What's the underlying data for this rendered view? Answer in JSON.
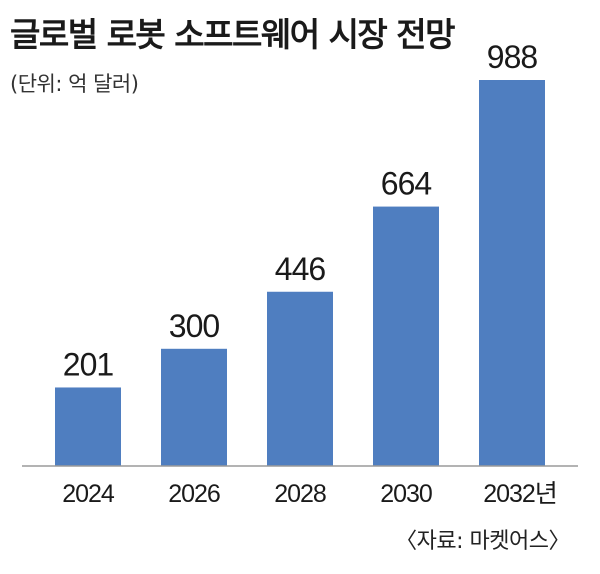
{
  "chart_data": {
    "type": "bar",
    "title": "글로벌 로봇 소프트웨어 시장 전망",
    "unit_note": "(단위: 억 달러)",
    "categories": [
      "2024",
      "2026",
      "2028",
      "2030",
      "2032년"
    ],
    "values": [
      201,
      300,
      446,
      664,
      988
    ],
    "data_labels": [
      "201",
      "300",
      "446",
      "664",
      "988"
    ],
    "ylim": [
      0,
      988
    ],
    "grid": false,
    "legend": "none",
    "source": "〈자료: 마켓어스〉",
    "colors": {
      "bar": "#4f7ec0",
      "baseline": "#9a9a9a"
    }
  }
}
